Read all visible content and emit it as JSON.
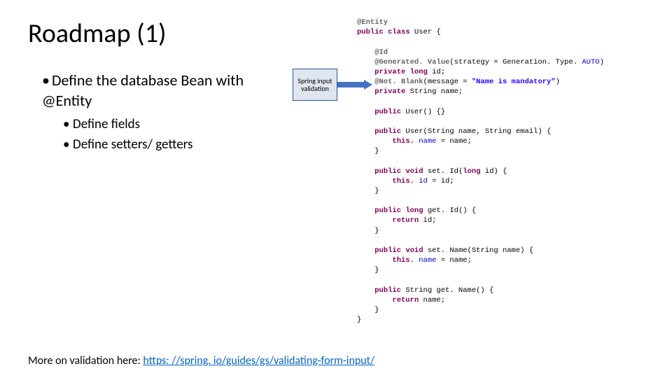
{
  "title": "Roadmap (1)",
  "bullets": {
    "main": "Define the database Bean with @Entity",
    "sub1": "Define fields",
    "sub2": "Define setters/ getters"
  },
  "callout": {
    "text": "Spring input validation",
    "bg_color": "#e0e6f0",
    "border_color": "#2f5597",
    "font_size": 10
  },
  "arrow": {
    "color": "#4472c4"
  },
  "code": {
    "font_family": "Courier New",
    "font_size": 10.5,
    "colors": {
      "keyword": "#7f0055",
      "annotation": "#646464",
      "string": "#2a00ff",
      "field": "#0000c0",
      "normal": "#000000"
    },
    "l01a": "@Entity",
    "l02a": "public",
    "l02b": " class",
    "l02c": " User {",
    "l03a": "    @Id",
    "l04a": "    @Generated. Value",
    "l04b": "(strategy = Generation. Type. ",
    "l04c": "AUTO",
    "l04d": ")",
    "l05a": "    private",
    "l05b": " long",
    "l05c": " id;",
    "l06a": "    @Not. Blank",
    "l06b": "(message = ",
    "l06c": "\"Name is mandatory\"",
    "l06d": ")",
    "l07a": "    private",
    "l07b": " String name;",
    "l08a": "    public",
    "l08b": " User() {}",
    "l09a": "    public",
    "l09b": " User(String name, String email) {",
    "l10a": "        this. ",
    "l10b": "name",
    "l10c": " = name;",
    "l11a": "    }",
    "l12a": "    public",
    "l12b": " void",
    "l12c": " set. Id(",
    "l12d": "long",
    "l12e": " id) {",
    "l13a": "        this. ",
    "l13b": "id",
    "l13c": " = id;",
    "l14a": "    }",
    "l15a": "    public",
    "l15b": " long",
    "l15c": " get. Id() {",
    "l16a": "        return",
    "l16b": " id;",
    "l17a": "    }",
    "l18a": "    public",
    "l18b": " void",
    "l18c": " set. Name(String name) {",
    "l19a": "        this. ",
    "l19b": "name",
    "l19c": " = name;",
    "l20a": "    }",
    "l21a": "    public",
    "l21b": " String get. Name() {",
    "l22a": "        return",
    "l22b": " name;",
    "l23a": "    }",
    "l24a": "}"
  },
  "footer": {
    "prefix": "More on validation here: ",
    "link_text": "https: //spring. io/guides/gs/validating-form-input/",
    "link_color": "#0563c1"
  }
}
